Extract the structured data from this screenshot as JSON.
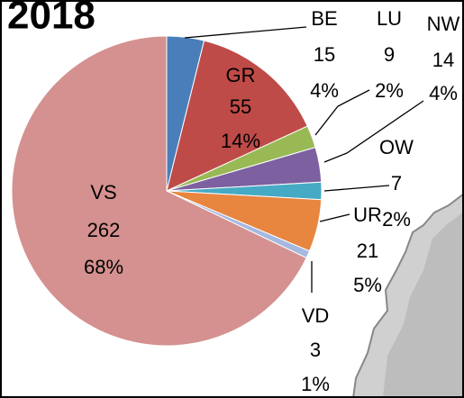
{
  "chart_data": {
    "type": "pie",
    "title": "2018",
    "categories": [
      "BE",
      "GR",
      "LU",
      "NW",
      "OW",
      "UR",
      "VD",
      "VS"
    ],
    "values": [
      15,
      55,
      9,
      14,
      7,
      21,
      3,
      262
    ],
    "shares": [
      "4%",
      "14%",
      "2%",
      "4%",
      "2%",
      "5%",
      "1%",
      "68%"
    ],
    "colors": [
      "#4a7ebb",
      "#be4b48",
      "#98b954",
      "#7d60a0",
      "#46aac5",
      "#e8853f",
      "#a5b8e0",
      "#d4918f"
    ]
  }
}
